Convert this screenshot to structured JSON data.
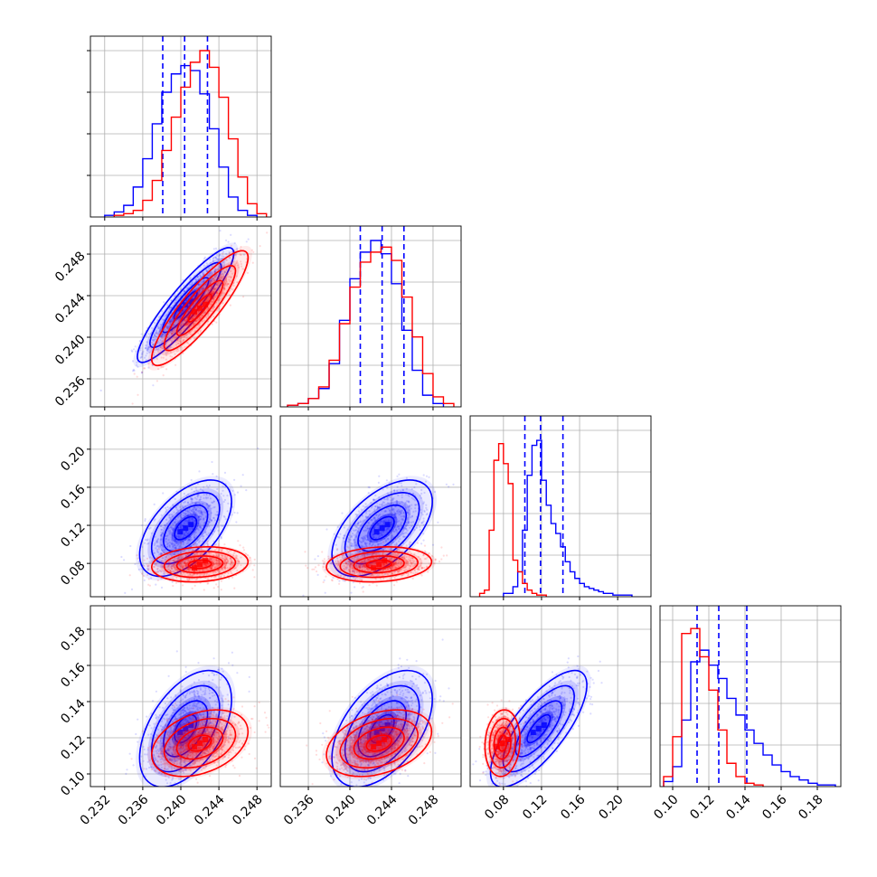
{
  "figure": {
    "background": "#ffffff"
  },
  "colors": {
    "blue": "#0000ff",
    "red": "#ff0000",
    "grid": "#b0b0b0",
    "axes": "#000000"
  },
  "chart_data": {
    "type": "corner",
    "grid": true,
    "parameters": [
      {
        "range": [
          0.2305,
          0.2495
        ],
        "ticks": [
          0.232,
          0.236,
          0.24,
          0.244,
          0.248
        ],
        "tick_labels": [
          "0.232",
          "0.236",
          "0.240",
          "0.244",
          "0.248"
        ]
      },
      {
        "range": [
          0.2333,
          0.2507
        ],
        "ticks": [
          0.236,
          0.24,
          0.244,
          0.248
        ],
        "tick_labels": [
          "0.236",
          "0.240",
          "0.244",
          "0.248"
        ]
      },
      {
        "range": [
          0.045,
          0.235
        ],
        "ticks": [
          0.08,
          0.12,
          0.16,
          0.2
        ],
        "tick_labels": [
          "0.08",
          "0.12",
          "0.16",
          "0.20"
        ]
      },
      {
        "range": [
          0.093,
          0.193
        ],
        "ticks": [
          0.1,
          0.12,
          0.14,
          0.16,
          0.18
        ],
        "tick_labels": [
          "0.10",
          "0.12",
          "0.14",
          "0.16",
          "0.18"
        ]
      }
    ],
    "series": [
      {
        "color": "#0000ff",
        "style": "solid",
        "histograms": [
          {
            "bin_centers": [
              0.2325,
              0.2335,
              0.2345,
              0.2355,
              0.2365,
              0.2375,
              0.2385,
              0.2395,
              0.2405,
              0.2415,
              0.2425,
              0.2435,
              0.2445,
              0.2455,
              0.2465,
              0.2475
            ],
            "counts": [
              0.01,
              0.03,
              0.07,
              0.18,
              0.35,
              0.56,
              0.75,
              0.86,
              0.91,
              0.88,
              0.74,
              0.53,
              0.3,
              0.12,
              0.04,
              0.01
            ]
          },
          {
            "bin_centers": [
              0.2345,
              0.2355,
              0.2365,
              0.2375,
              0.2385,
              0.2395,
              0.2405,
              0.2415,
              0.2425,
              0.2435,
              0.2445,
              0.2455,
              0.2465,
              0.2475,
              0.2485
            ],
            "counts": [
              0.01,
              0.02,
              0.05,
              0.11,
              0.26,
              0.52,
              0.77,
              0.93,
              1.0,
              0.92,
              0.74,
              0.46,
              0.22,
              0.07,
              0.02
            ]
          },
          {
            "bin_centers": [
              0.0825,
              0.0875,
              0.0925,
              0.0975,
              0.1025,
              0.1075,
              0.1125,
              0.1175,
              0.1225,
              0.1275,
              0.1325,
              0.1375,
              0.1425,
              0.1475,
              0.1525,
              0.1575,
              0.1625,
              0.1675,
              0.1725,
              0.1775,
              0.1825,
              0.1875,
              0.1925,
              0.1975,
              0.2025,
              0.2075,
              0.2125
            ],
            "counts": [
              0.02,
              0.02,
              0.06,
              0.15,
              0.4,
              0.73,
              0.91,
              0.94,
              0.7,
              0.55,
              0.44,
              0.38,
              0.3,
              0.21,
              0.15,
              0.11,
              0.08,
              0.06,
              0.05,
              0.04,
              0.03,
              0.02,
              0.02,
              0.01,
              0.01,
              0.01,
              0.01
            ]
          },
          {
            "bin_centers": [
              0.0975,
              0.1025,
              0.1075,
              0.1125,
              0.1175,
              0.1225,
              0.1275,
              0.1325,
              0.1375,
              0.1425,
              0.1475,
              0.1525,
              0.1575,
              0.1625,
              0.1675,
              0.1725,
              0.1775,
              0.1825,
              0.1875
            ],
            "counts": [
              0.03,
              0.12,
              0.4,
              0.75,
              0.82,
              0.73,
              0.65,
              0.53,
              0.43,
              0.34,
              0.26,
              0.19,
              0.13,
              0.09,
              0.06,
              0.04,
              0.02,
              0.01,
              0.01
            ]
          }
        ],
        "quantiles": [
          [
            0.2381,
            0.2404,
            0.2428
          ],
          [
            0.241,
            0.2431,
            0.2452
          ],
          [
            0.1025,
            0.119,
            0.1425
          ],
          [
            0.1135,
            0.1255,
            0.141
          ]
        ],
        "scatter_cloud": [
          {
            "x": 0,
            "y": 1,
            "center": [
              0.2405,
              0.2431
            ],
            "sd": [
              0.0022,
              0.0024
            ],
            "rho": 0.9
          },
          {
            "x": 0,
            "y": 2,
            "center": [
              0.2405,
              0.117
            ],
            "sd": [
              0.0021,
              0.022
            ],
            "rho": 0.55
          },
          {
            "x": 1,
            "y": 2,
            "center": [
              0.2431,
              0.117
            ],
            "sd": [
              0.0021,
              0.022
            ],
            "rho": 0.55
          },
          {
            "x": 0,
            "y": 3,
            "center": [
              0.2405,
              0.125
            ],
            "sd": [
              0.0021,
              0.014
            ],
            "rho": 0.5
          },
          {
            "x": 1,
            "y": 3,
            "center": [
              0.2431,
              0.125
            ],
            "sd": [
              0.0021,
              0.014
            ],
            "rho": 0.5
          },
          {
            "x": 2,
            "y": 3,
            "center": [
              0.117,
              0.125
            ],
            "sd": [
              0.022,
              0.014
            ],
            "rho": 0.75
          }
        ]
      },
      {
        "color": "#ff0000",
        "style": "solid",
        "histograms": [
          {
            "bin_centers": [
              0.2335,
              0.2345,
              0.2355,
              0.2365,
              0.2375,
              0.2385,
              0.2395,
              0.2405,
              0.2415,
              0.2425,
              0.2435,
              0.2445,
              0.2455,
              0.2465,
              0.2475,
              0.2485
            ],
            "counts": [
              0.01,
              0.02,
              0.04,
              0.1,
              0.22,
              0.4,
              0.6,
              0.78,
              0.93,
              1.0,
              0.9,
              0.72,
              0.47,
              0.24,
              0.08,
              0.02
            ]
          },
          {
            "bin_centers": [
              0.2345,
              0.2355,
              0.2365,
              0.2375,
              0.2385,
              0.2395,
              0.2405,
              0.2415,
              0.2425,
              0.2435,
              0.2445,
              0.2455,
              0.2465,
              0.2475,
              0.2485,
              0.2495
            ],
            "counts": [
              0.01,
              0.02,
              0.05,
              0.12,
              0.28,
              0.5,
              0.72,
              0.87,
              0.93,
              0.96,
              0.88,
              0.66,
              0.42,
              0.2,
              0.06,
              0.02
            ]
          },
          {
            "bin_centers": [
              0.0575,
              0.0625,
              0.0675,
              0.0725,
              0.0775,
              0.0825,
              0.0875,
              0.0925,
              0.0975,
              0.1025,
              0.1075,
              0.1125,
              0.1175,
              0.1225
            ],
            "counts": [
              0.02,
              0.04,
              0.4,
              0.82,
              0.92,
              0.8,
              0.68,
              0.22,
              0.15,
              0.08,
              0.04,
              0.02,
              0.01,
              0.01
            ]
          },
          {
            "bin_centers": [
              0.0975,
              0.1025,
              0.1075,
              0.1125,
              0.1175,
              0.1225,
              0.1275,
              0.1325,
              0.1375,
              0.1425,
              0.1475
            ],
            "counts": [
              0.06,
              0.3,
              0.92,
              0.95,
              0.78,
              0.58,
              0.34,
              0.14,
              0.06,
              0.02,
              0.01
            ]
          }
        ],
        "quantiles": [],
        "scatter_cloud": [
          {
            "x": 0,
            "y": 1,
            "center": [
              0.242,
              0.2428
            ],
            "sd": [
              0.0022,
              0.0024
            ],
            "rho": 0.88
          },
          {
            "x": 0,
            "y": 2,
            "center": [
              0.242,
              0.079
            ],
            "sd": [
              0.0022,
              0.008
            ],
            "rho": 0.15
          },
          {
            "x": 1,
            "y": 2,
            "center": [
              0.2428,
              0.079
            ],
            "sd": [
              0.0022,
              0.008
            ],
            "rho": 0.15
          },
          {
            "x": 0,
            "y": 3,
            "center": [
              0.242,
              0.117
            ],
            "sd": [
              0.0022,
              0.008
            ],
            "rho": 0.35
          },
          {
            "x": 1,
            "y": 3,
            "center": [
              0.2428,
              0.117
            ],
            "sd": [
              0.0022,
              0.008
            ],
            "rho": 0.35
          },
          {
            "x": 2,
            "y": 3,
            "center": [
              0.079,
              0.117
            ],
            "sd": [
              0.008,
              0.008
            ],
            "rho": 0.1
          }
        ]
      }
    ]
  }
}
